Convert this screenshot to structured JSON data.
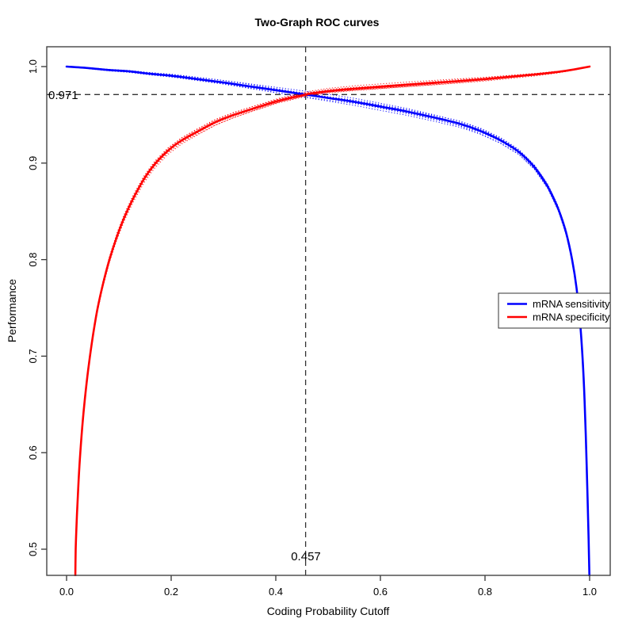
{
  "chart_data": {
    "type": "line",
    "title": "Two-Graph ROC curves",
    "xlabel": "Coding Probability Cutoff",
    "ylabel": "Performance",
    "xlim": [
      -0.04,
      1.04
    ],
    "ylim": [
      0.468,
      1.021
    ],
    "grid": false,
    "x_tick_values": [
      0.0,
      0.2,
      0.4,
      0.6,
      0.8,
      1.0
    ],
    "x_tick_labels": [
      "0.0",
      "0.2",
      "0.4",
      "0.6",
      "0.8",
      "1.0"
    ],
    "y_tick_values": [
      0.5,
      0.6,
      0.7,
      0.8,
      0.9,
      1.0
    ],
    "y_tick_labels": [
      "0.5",
      "0.6",
      "0.7",
      "0.8",
      "0.9",
      "1.0"
    ],
    "cutoff": {
      "x": 0.457,
      "y": 0.971,
      "x_label": "0.457",
      "y_label": "0.971",
      "line_style": "dashed",
      "line_color": "#333333"
    },
    "legend": {
      "position": "right-middle",
      "border": true
    },
    "series": [
      {
        "name": "mRNA sensitivity",
        "color": "#0000ff",
        "style": "solid",
        "ci_style": "dotted",
        "ci_replicates": 8,
        "ci_max_offset": 0.008,
        "points": [
          [
            0,
            1
          ],
          [
            0.04,
            0.9985
          ],
          [
            0.08,
            0.9965
          ],
          [
            0.12,
            0.995
          ],
          [
            0.16,
            0.9925
          ],
          [
            0.2,
            0.9905
          ],
          [
            0.25,
            0.987
          ],
          [
            0.3,
            0.9835
          ],
          [
            0.35,
            0.9795
          ],
          [
            0.4,
            0.9755
          ],
          [
            0.457,
            0.971
          ],
          [
            0.5,
            0.9675
          ],
          [
            0.55,
            0.9635
          ],
          [
            0.6,
            0.9585
          ],
          [
            0.65,
            0.9535
          ],
          [
            0.7,
            0.9475
          ],
          [
            0.75,
            0.941
          ],
          [
            0.79,
            0.9335
          ],
          [
            0.83,
            0.9235
          ],
          [
            0.865,
            0.9115
          ],
          [
            0.895,
            0.8955
          ],
          [
            0.92,
            0.8755
          ],
          [
            0.94,
            0.8525
          ],
          [
            0.955,
            0.828
          ],
          [
            0.9665,
            0.8
          ],
          [
            0.975,
            0.7705
          ],
          [
            0.9815,
            0.7365
          ],
          [
            0.9865,
            0.698
          ],
          [
            0.9905,
            0.6525
          ],
          [
            0.9935,
            0.603
          ],
          [
            0.996,
            0.5535
          ],
          [
            0.998,
            0.5115
          ],
          [
            1,
            0.462
          ]
        ]
      },
      {
        "name": "mRNA specificity",
        "color": "#ff0000",
        "style": "solid",
        "ci_style": "dotted",
        "ci_replicates": 8,
        "ci_max_offset": 0.008,
        "points": [
          [
            0.0165,
            0.462
          ],
          [
            0.0175,
            0.5
          ],
          [
            0.02,
            0.5375
          ],
          [
            0.023,
            0.5715
          ],
          [
            0.0265,
            0.602
          ],
          [
            0.031,
            0.6335
          ],
          [
            0.0365,
            0.6635
          ],
          [
            0.043,
            0.693
          ],
          [
            0.0505,
            0.7215
          ],
          [
            0.059,
            0.7485
          ],
          [
            0.0695,
            0.7745
          ],
          [
            0.082,
            0.8
          ],
          [
            0.096,
            0.8235
          ],
          [
            0.111,
            0.8445
          ],
          [
            0.128,
            0.864
          ],
          [
            0.148,
            0.8835
          ],
          [
            0.168,
            0.8985
          ],
          [
            0.193,
            0.9125
          ],
          [
            0.22,
            0.9235
          ],
          [
            0.25,
            0.9325
          ],
          [
            0.285,
            0.9425
          ],
          [
            0.32,
            0.95
          ],
          [
            0.36,
            0.957
          ],
          [
            0.405,
            0.9645
          ],
          [
            0.457,
            0.971
          ],
          [
            0.5,
            0.9745
          ],
          [
            0.55,
            0.977
          ],
          [
            0.6,
            0.979
          ],
          [
            0.65,
            0.981
          ],
          [
            0.7,
            0.983
          ],
          [
            0.75,
            0.985
          ],
          [
            0.8,
            0.987
          ],
          [
            0.85,
            0.9895
          ],
          [
            0.9,
            0.992
          ],
          [
            0.94,
            0.9945
          ],
          [
            0.97,
            0.997
          ],
          [
            1,
            1
          ]
        ]
      }
    ]
  }
}
